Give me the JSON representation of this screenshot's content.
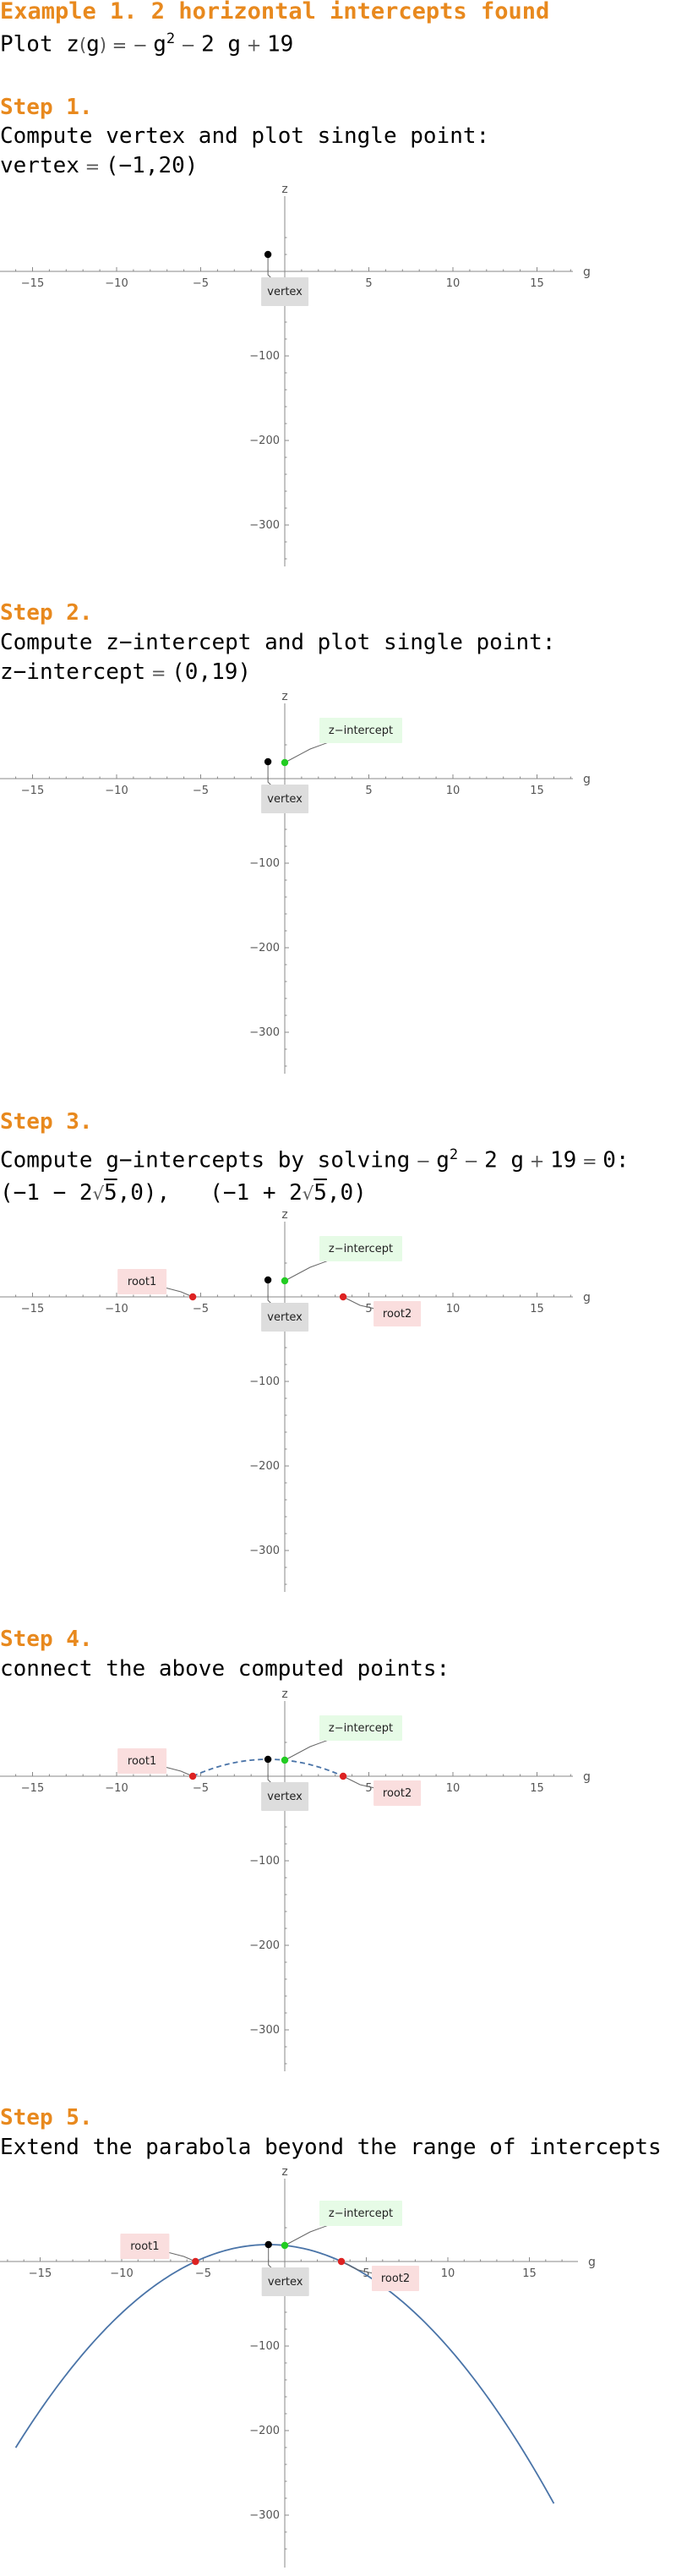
{
  "header": {
    "title": "Example 1. 2 horizontal intercepts found",
    "plot_prefix": "Plot",
    "func_lhs": "z",
    "func_arg": "g",
    "func_rhs_1": "g",
    "func_exp": "2",
    "func_rhs_2": "2 g",
    "func_rhs_3": "19"
  },
  "steps": [
    {
      "heading": "Step 1.",
      "text1": "Compute vertex and plot single point:",
      "text2_label": "vertex",
      "text2_value": "(−1,20)"
    },
    {
      "heading": "Step 2.",
      "text1": "Compute z−intercept and plot single point:",
      "text2_label": "z−intercept",
      "text2_value": "(0,19)"
    },
    {
      "heading": "Step 3.",
      "text1a": "Compute g−intercepts by solving",
      "text1b": "g",
      "text1c": "2 g",
      "text1d": "19",
      "text1e": "0:",
      "root_a": "(−1 − 2",
      "root_b": "5",
      "root_c": ",0),",
      "root_d": "(−1 + 2",
      "root_e": "5",
      "root_f": ",0)"
    },
    {
      "heading": "Step 4.",
      "text1": "connect the above computed points:"
    },
    {
      "heading": "Step 5.",
      "text1": "Extend the parabola beyond the range of intercepts"
    }
  ],
  "labels": {
    "vertex": "vertex",
    "zint": "z−intercept",
    "root1": "root1",
    "root2": "root2"
  },
  "colors": {
    "accent": "#e8891e",
    "vertex": "#000000",
    "zint": "#22cc22",
    "root": "#dd2222",
    "curve": "#4a74a8",
    "vertexBox": "#dddddd",
    "zintBox": "#e6fbe6",
    "rootBox": "#fadede"
  },
  "chart_data": [
    {
      "type": "scatter",
      "xlabel": "g",
      "ylabel": "z",
      "xticks": [
        -15,
        -10,
        -5,
        5,
        10,
        15
      ],
      "yticks": [
        -100,
        -200,
        -300
      ],
      "xlim": [
        -17,
        17
      ],
      "ylim": [
        -345,
        45
      ],
      "points": [
        {
          "name": "vertex",
          "x": -1,
          "y": 20
        }
      ]
    },
    {
      "type": "scatter",
      "xlabel": "g",
      "ylabel": "z",
      "xticks": [
        -15,
        -10,
        -5,
        5,
        10,
        15
      ],
      "yticks": [
        -100,
        -200,
        -300
      ],
      "xlim": [
        -17,
        17
      ],
      "ylim": [
        -345,
        45
      ],
      "points": [
        {
          "name": "vertex",
          "x": -1,
          "y": 20
        },
        {
          "name": "z-intercept",
          "x": 0,
          "y": 19
        }
      ]
    },
    {
      "type": "scatter",
      "xlabel": "g",
      "ylabel": "z",
      "xticks": [
        -15,
        -10,
        -5,
        5,
        10,
        15
      ],
      "yticks": [
        -100,
        -200,
        -300
      ],
      "xlim": [
        -17,
        17
      ],
      "ylim": [
        -345,
        45
      ],
      "points": [
        {
          "name": "vertex",
          "x": -1,
          "y": 20
        },
        {
          "name": "z-intercept",
          "x": 0,
          "y": 19
        },
        {
          "name": "root1",
          "x": -5.472,
          "y": 0
        },
        {
          "name": "root2",
          "x": 3.472,
          "y": 0
        }
      ]
    },
    {
      "type": "line",
      "xlabel": "g",
      "ylabel": "z",
      "xticks": [
        -15,
        -10,
        -5,
        5,
        10,
        15
      ],
      "yticks": [
        -100,
        -200,
        -300
      ],
      "xlim": [
        -17,
        17
      ],
      "ylim": [
        -345,
        45
      ],
      "points": [
        {
          "name": "vertex",
          "x": -1,
          "y": 20
        },
        {
          "name": "z-intercept",
          "x": 0,
          "y": 19
        },
        {
          "name": "root1",
          "x": -5.472,
          "y": 0
        },
        {
          "name": "root2",
          "x": 3.472,
          "y": 0
        }
      ],
      "curve": {
        "a": -1,
        "b": -2,
        "c": 19,
        "from": -5.472,
        "to": 3.472,
        "dashed": true
      }
    },
    {
      "type": "line",
      "xlabel": "g",
      "ylabel": "z",
      "xticks": [
        -15,
        -10,
        -5,
        5,
        10,
        15
      ],
      "yticks": [
        -100,
        -200,
        -300
      ],
      "xlim": [
        -17.5,
        17.5
      ],
      "ylim": [
        -345,
        45
      ],
      "points": [
        {
          "name": "vertex",
          "x": -1,
          "y": 20
        },
        {
          "name": "z-intercept",
          "x": 0,
          "y": 19
        },
        {
          "name": "root1",
          "x": -5.472,
          "y": 0
        },
        {
          "name": "root2",
          "x": 3.472,
          "y": 0
        }
      ],
      "curve": {
        "a": -1,
        "b": -2,
        "c": 19,
        "from": -16.5,
        "to": 16.5,
        "dashed": false
      }
    }
  ]
}
